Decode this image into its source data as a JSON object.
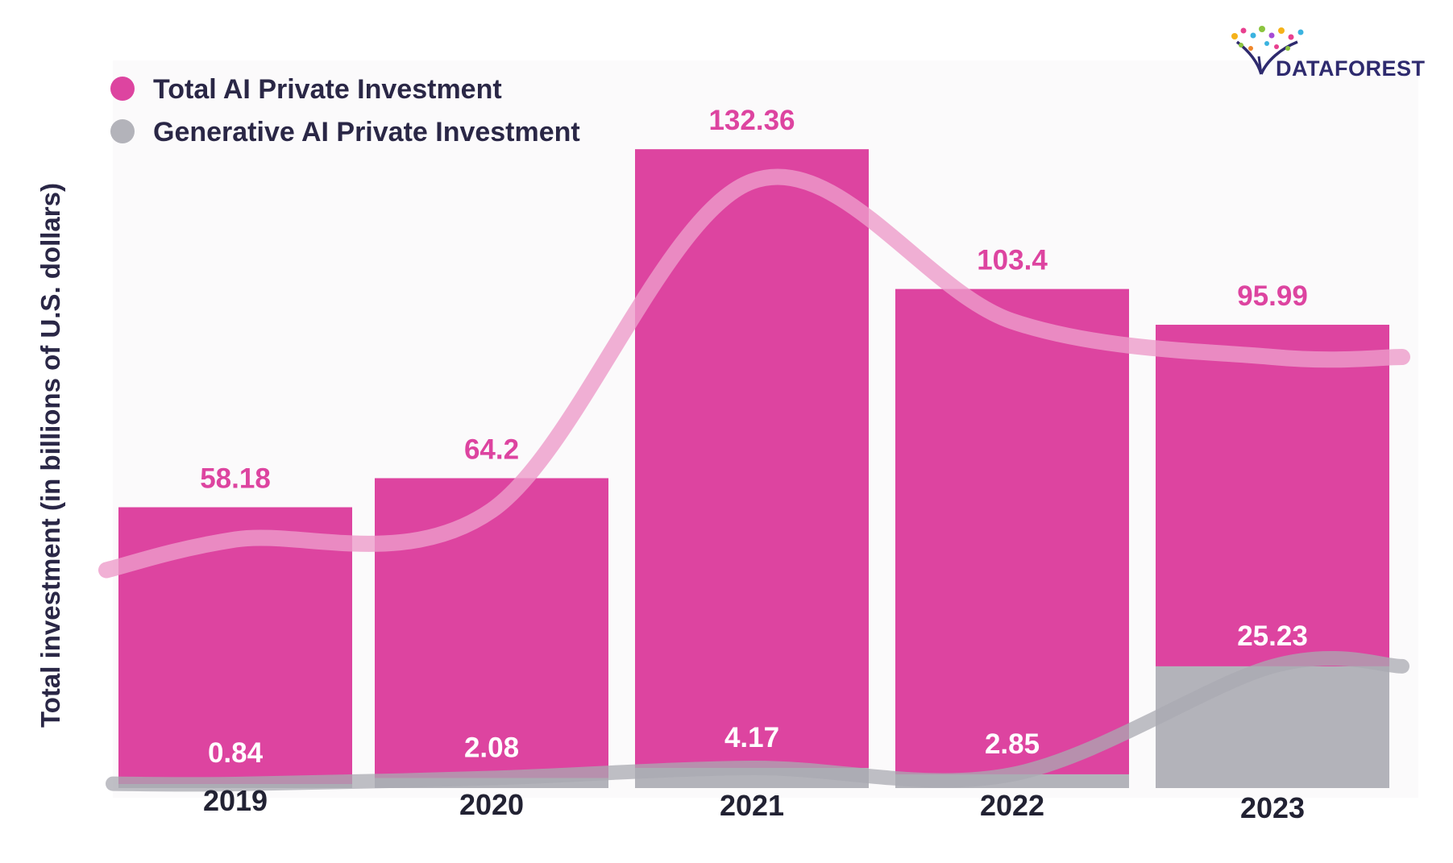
{
  "logo": {
    "text": "DATAFOREST"
  },
  "legend": [
    {
      "label": "Total AI Private Investment",
      "color": "#dd44a0"
    },
    {
      "label": "Generative AI Private Investment",
      "color": "#b3b3ba"
    }
  ],
  "chart_data": {
    "type": "bar",
    "ylabel": "Total investment (in billions of U.S. dollars)",
    "xlabel": "",
    "categories": [
      "2019",
      "2020",
      "2021",
      "2022",
      "2023"
    ],
    "series": [
      {
        "name": "Total AI Private Investment",
        "color": "#dd44a0",
        "values": [
          58.18,
          64.2,
          132.36,
          103.4,
          95.99
        ],
        "labels": [
          "58.18",
          "64.2",
          "132.36",
          "103.4",
          "95.99"
        ]
      },
      {
        "name": "Generative AI Private Investment",
        "color": "#b3b3ba",
        "values": [
          0.84,
          2.08,
          4.17,
          2.85,
          25.23
        ],
        "labels": [
          "0.84",
          "2.08",
          "4.17",
          "2.85",
          "25.23"
        ]
      }
    ],
    "ylim": [
      0,
      140
    ],
    "grid": false,
    "legend_position": "top-left",
    "trend_lines": true
  }
}
